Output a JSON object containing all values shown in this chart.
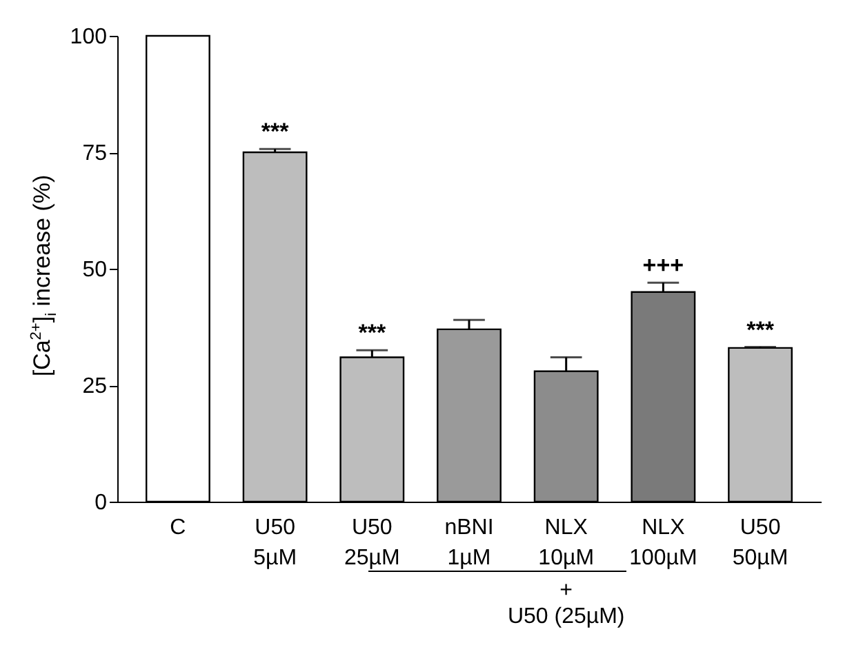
{
  "chart_data": {
    "type": "bar",
    "ylabel": "[Ca$^{2+}$]$_{i}$ increase (%)",
    "categories": [
      "C",
      "U50\n5µM",
      "U50\n25µM",
      "nBNI\n1µM",
      "NLX\n10µM",
      "NLX\n100µM",
      "U50\n50µM"
    ],
    "values": [
      100,
      75,
      31,
      37,
      28,
      45,
      33
    ],
    "colors": [
      "#ffffff",
      "#bdbdbd",
      "#bdbdbd",
      "#9a9a9a",
      "#8c8c8c",
      "#7a7a7a",
      "#bdbdbd"
    ],
    "errors": [
      null,
      [
        75,
        75.7
      ],
      [
        31,
        32.5
      ],
      [
        37,
        39
      ],
      [
        28,
        31
      ],
      [
        45,
        47
      ],
      [
        33,
        33.2
      ]
    ],
    "ylim": [
      0,
      100
    ],
    "yticks": [
      0,
      25,
      50,
      75,
      100
    ],
    "annotations": [
      {
        "text": "***",
        "x": "U50\n5µM",
        "y": 75.7
      },
      {
        "text": "***",
        "x": "U50\n25µM",
        "y": 32.5
      },
      {
        "text": "+++",
        "x": "NLX\n100µM",
        "y": 47
      },
      {
        "text": "***",
        "x": "U50\n50µM",
        "y": 33.2
      },
      "+\nU50 (25µM)"
    ]
  }
}
